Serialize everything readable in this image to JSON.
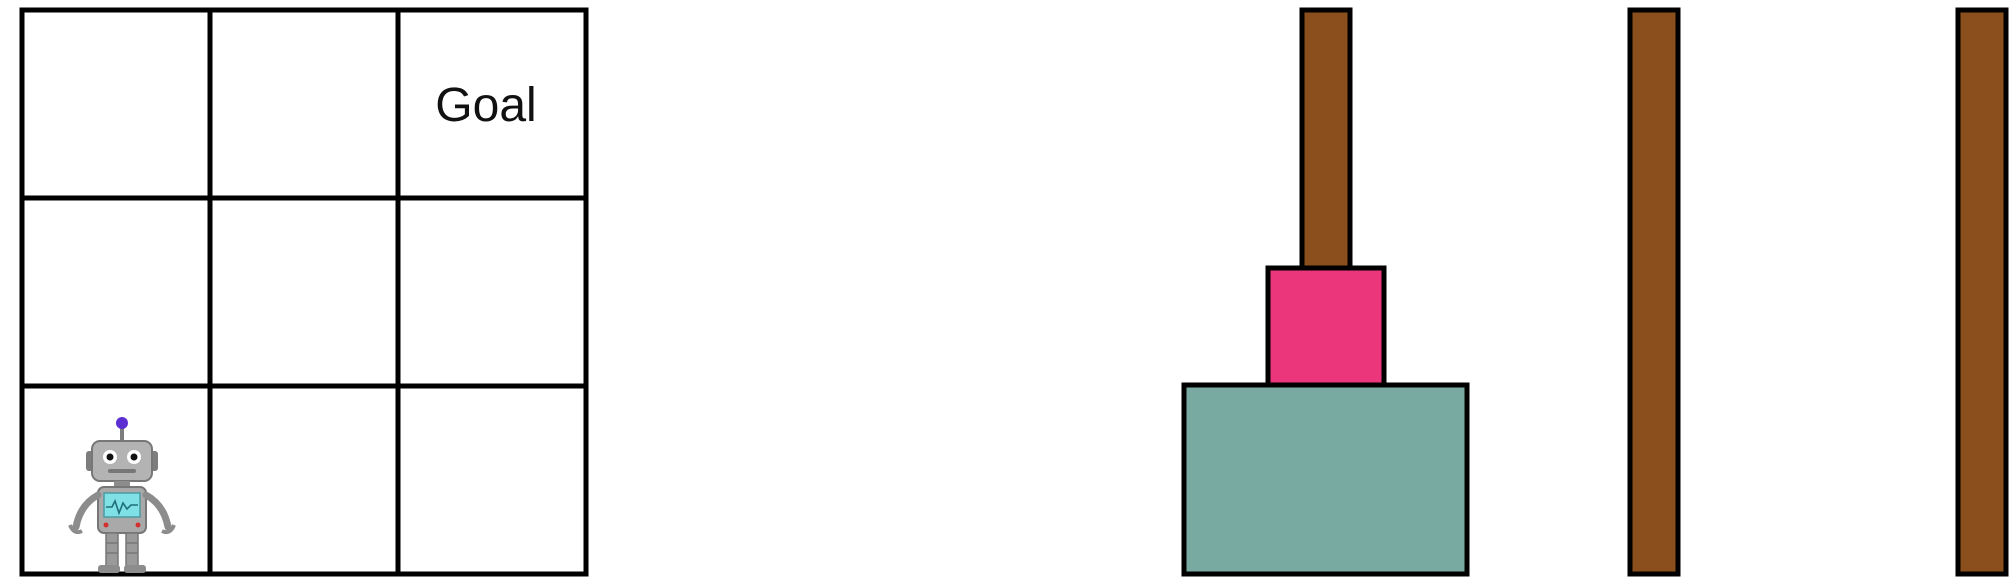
{
  "grid": {
    "rows": 3,
    "cols": 3,
    "goal": {
      "row": 0,
      "col": 2,
      "label": "Goal"
    },
    "robot": {
      "row": 2,
      "col": 0
    }
  },
  "towers": {
    "peg_count": 3,
    "disks": [
      {
        "peg": 0,
        "level": 0,
        "size": "large",
        "color": "#78aaa2"
      },
      {
        "peg": 0,
        "level": 1,
        "size": "small",
        "color": "#ec367c"
      }
    ]
  },
  "colors": {
    "peg": "#8b4f1e",
    "outline": "#000000",
    "grid_line": "#000000",
    "robot_body": "#a9a9a9",
    "robot_dark": "#7d7d7d",
    "robot_antenna_tip": "#5b2fd1",
    "robot_screen": "#7fe0e6",
    "robot_button": "#d0312d"
  }
}
